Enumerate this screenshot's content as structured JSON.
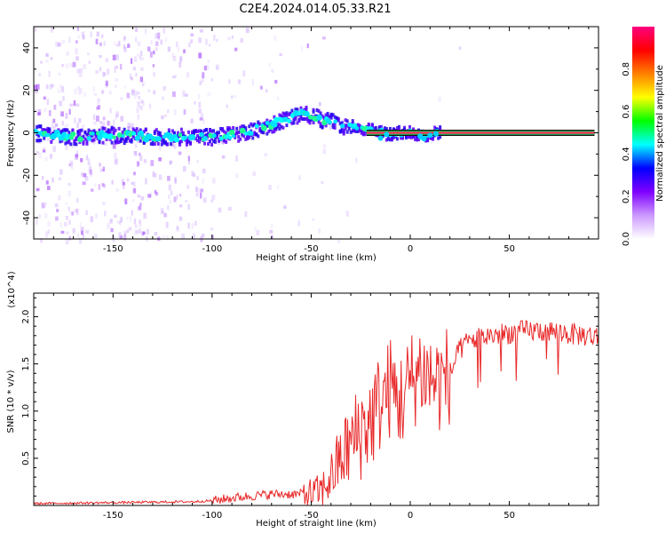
{
  "title": "C2E4.2024.014.05.33.R21",
  "chart_data": [
    {
      "type": "heatmap",
      "xlabel": "Height of straight line (km)",
      "ylabel": "Frequency (Hz)",
      "xlim": [
        -190,
        95
      ],
      "ylim": [
        -50,
        50
      ],
      "xticks": [
        -150,
        -100,
        -50,
        0,
        50
      ],
      "yticks": [
        -40,
        -20,
        0,
        20,
        40
      ],
      "colorbar": {
        "label": "Normalized spectral amplitude",
        "range": [
          0.0,
          1.0
        ],
        "ticks": [
          0.0,
          0.2,
          0.4,
          0.6,
          0.8
        ],
        "colors": [
          "#ffffff",
          "#cc99ff",
          "#7f00ff",
          "#0000ff",
          "#00ffff",
          "#00ff00",
          "#ffff00",
          "#ff8000",
          "#ff0000",
          "#ff0080"
        ]
      },
      "ridge": {
        "x": [
          -190,
          -170,
          -150,
          -130,
          -110,
          -100,
          -90,
          -80,
          -70,
          -60,
          -55,
          -50,
          -45,
          -40,
          -35,
          -30,
          -25,
          -20,
          -15,
          -12,
          -8,
          -5,
          0,
          5,
          8,
          12,
          15,
          20,
          30,
          50,
          70,
          93
        ],
        "y": [
          0,
          -2,
          -1,
          -2,
          -2,
          -2,
          -1,
          1,
          4,
          7,
          9,
          8,
          6,
          6,
          3,
          3,
          2,
          2,
          1,
          -1,
          0,
          0,
          0,
          -1,
          -2,
          0,
          0,
          0,
          0,
          0,
          0,
          0
        ]
      }
    },
    {
      "type": "line",
      "xlabel": "Height of straight line (km)",
      "ylabel": "SNR (10 * v/v)",
      "y_multiplier": "(x10^4)",
      "xlim": [
        -190,
        95
      ],
      "ylim": [
        0,
        2.25
      ],
      "xticks": [
        -150,
        -100,
        -50,
        0,
        50
      ],
      "yticks": [
        0.5,
        1.0,
        1.5,
        2.0
      ],
      "color": "#e8292a",
      "series": [
        {
          "x": [
            -190,
            -150,
            -110,
            -100,
            -90,
            -80,
            -70,
            -60,
            -50,
            -45,
            -40,
            -35,
            -30,
            -25,
            -20,
            -15,
            -10,
            -5,
            0,
            5,
            10,
            15,
            20,
            25,
            30,
            40,
            50,
            60,
            70,
            80,
            90,
            95
          ],
          "y": [
            0.02,
            0.03,
            0.04,
            0.05,
            0.08,
            0.1,
            0.12,
            0.12,
            0.12,
            0.15,
            0.3,
            0.5,
            0.65,
            0.8,
            0.9,
            1.1,
            1.25,
            1.1,
            1.3,
            1.45,
            1.35,
            1.3,
            1.4,
            1.65,
            1.75,
            1.8,
            1.83,
            1.85,
            1.85,
            1.82,
            1.8,
            1.78
          ]
        }
      ]
    }
  ]
}
